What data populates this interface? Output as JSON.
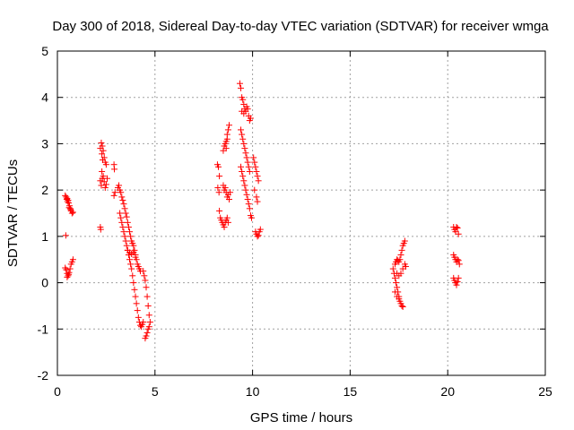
{
  "chart_data": {
    "type": "scatter",
    "title": "Day 300 of 2018, Sidereal Day-to-day VTEC variation (SDTVAR) for receiver wmga",
    "xlabel": "GPS time / hours",
    "ylabel": "SDTVAR / TECUs",
    "xlim": [
      0,
      25
    ],
    "ylim": [
      -2,
      5
    ],
    "x_ticks": [
      "0",
      "5",
      "10",
      "15",
      "20",
      "25"
    ],
    "y_ticks": [
      "-2",
      "-1",
      "0",
      "1",
      "2",
      "3",
      "4",
      "5"
    ],
    "grid": true,
    "marker": "+",
    "color": "#ff0000",
    "series": [
      {
        "name": "SDTVAR",
        "points": [
          [
            0.4,
            1.88
          ],
          [
            0.45,
            1.85
          ],
          [
            0.5,
            1.82
          ],
          [
            0.55,
            1.78
          ],
          [
            0.58,
            1.72
          ],
          [
            0.62,
            1.66
          ],
          [
            0.66,
            1.6
          ],
          [
            0.7,
            1.55
          ],
          [
            0.75,
            1.5
          ],
          [
            0.8,
            1.52
          ],
          [
            0.48,
            1.8
          ],
          [
            0.52,
            1.75
          ],
          [
            0.6,
            1.62
          ],
          [
            0.68,
            1.58
          ],
          [
            0.43,
            1.02
          ],
          [
            0.4,
            0.32
          ],
          [
            0.45,
            0.28
          ],
          [
            0.5,
            0.2
          ],
          [
            0.55,
            0.15
          ],
          [
            0.6,
            0.22
          ],
          [
            0.65,
            0.3
          ],
          [
            0.7,
            0.4
          ],
          [
            0.75,
            0.45
          ],
          [
            0.8,
            0.5
          ],
          [
            0.5,
            0.12
          ],
          [
            0.58,
            0.18
          ],
          [
            2.2,
            2.9
          ],
          [
            2.25,
            3.02
          ],
          [
            2.3,
            2.95
          ],
          [
            2.35,
            2.85
          ],
          [
            2.4,
            2.7
          ],
          [
            2.45,
            2.6
          ],
          [
            2.5,
            2.55
          ],
          [
            2.28,
            2.78
          ],
          [
            2.32,
            2.65
          ],
          [
            2.2,
            2.2
          ],
          [
            2.25,
            2.1
          ],
          [
            2.3,
            2.25
          ],
          [
            2.35,
            2.3
          ],
          [
            2.4,
            2.18
          ],
          [
            2.45,
            2.05
          ],
          [
            2.5,
            2.12
          ],
          [
            2.55,
            2.25
          ],
          [
            2.28,
            2.4
          ],
          [
            2.22,
            1.15
          ],
          [
            2.2,
            1.2
          ],
          [
            2.9,
            2.55
          ],
          [
            2.92,
            2.45
          ],
          [
            2.95,
            1.95
          ],
          [
            2.9,
            1.88
          ],
          [
            3.1,
            2.05
          ],
          [
            3.15,
            2.1
          ],
          [
            3.2,
            2.0
          ],
          [
            3.25,
            1.95
          ],
          [
            3.3,
            1.85
          ],
          [
            3.35,
            1.78
          ],
          [
            3.4,
            1.7
          ],
          [
            3.45,
            1.6
          ],
          [
            3.5,
            1.5
          ],
          [
            3.55,
            1.42
          ],
          [
            3.6,
            1.3
          ],
          [
            3.65,
            1.2
          ],
          [
            3.7,
            1.1
          ],
          [
            3.75,
            1.0
          ],
          [
            3.8,
            0.9
          ],
          [
            3.85,
            0.85
          ],
          [
            3.9,
            0.8
          ],
          [
            3.95,
            0.7
          ],
          [
            4.0,
            0.6
          ],
          [
            4.05,
            0.5
          ],
          [
            4.1,
            0.4
          ],
          [
            4.15,
            0.35
          ],
          [
            4.2,
            0.3
          ],
          [
            4.25,
            0.25
          ],
          [
            3.2,
            1.5
          ],
          [
            3.25,
            1.4
          ],
          [
            3.3,
            1.3
          ],
          [
            3.35,
            1.2
          ],
          [
            3.4,
            1.1
          ],
          [
            3.45,
            1.0
          ],
          [
            3.5,
            0.9
          ],
          [
            3.55,
            0.8
          ],
          [
            3.6,
            0.7
          ],
          [
            3.65,
            0.6
          ],
          [
            3.7,
            0.5
          ],
          [
            3.75,
            0.4
          ],
          [
            3.8,
            0.3
          ],
          [
            3.85,
            0.15
          ],
          [
            3.9,
            0.0
          ],
          [
            3.95,
            -0.15
          ],
          [
            4.0,
            -0.3
          ],
          [
            4.05,
            -0.45
          ],
          [
            4.1,
            -0.6
          ],
          [
            4.15,
            -0.75
          ],
          [
            4.2,
            -0.85
          ],
          [
            4.25,
            -0.92
          ],
          [
            4.3,
            -0.95
          ],
          [
            4.35,
            -0.9
          ],
          [
            4.4,
            -0.85
          ],
          [
            3.6,
            0.7
          ],
          [
            3.7,
            0.65
          ],
          [
            3.8,
            0.62
          ],
          [
            3.9,
            0.66
          ],
          [
            4.0,
            0.55
          ],
          [
            4.4,
            0.25
          ],
          [
            4.45,
            0.15
          ],
          [
            4.5,
            0.05
          ],
          [
            4.55,
            -0.1
          ],
          [
            4.6,
            -0.3
          ],
          [
            4.65,
            -0.5
          ],
          [
            4.7,
            -0.7
          ],
          [
            4.75,
            -0.85
          ],
          [
            4.5,
            -1.2
          ],
          [
            4.55,
            -1.15
          ],
          [
            4.6,
            -1.08
          ],
          [
            4.65,
            -1.0
          ],
          [
            4.7,
            -0.95
          ],
          [
            8.2,
            2.55
          ],
          [
            8.25,
            2.5
          ],
          [
            8.3,
            2.3
          ],
          [
            8.22,
            2.05
          ],
          [
            8.28,
            1.95
          ],
          [
            8.3,
            1.55
          ],
          [
            8.35,
            1.4
          ],
          [
            8.4,
            1.35
          ],
          [
            8.45,
            1.3
          ],
          [
            8.5,
            1.25
          ],
          [
            8.55,
            1.2
          ],
          [
            8.6,
            1.3
          ],
          [
            8.65,
            1.35
          ],
          [
            8.7,
            1.4
          ],
          [
            8.75,
            1.3
          ],
          [
            8.5,
            2.1
          ],
          [
            8.55,
            2.0
          ],
          [
            8.6,
            2.05
          ],
          [
            8.65,
            1.95
          ],
          [
            8.7,
            1.85
          ],
          [
            8.75,
            1.9
          ],
          [
            8.8,
            1.8
          ],
          [
            8.85,
            1.95
          ],
          [
            8.5,
            2.85
          ],
          [
            8.55,
            2.95
          ],
          [
            8.6,
            3.0
          ],
          [
            8.65,
            3.05
          ],
          [
            8.7,
            3.2
          ],
          [
            8.75,
            3.3
          ],
          [
            8.8,
            3.4
          ],
          [
            8.7,
            3.1
          ],
          [
            8.65,
            2.9
          ],
          [
            9.35,
            4.3
          ],
          [
            9.4,
            4.2
          ],
          [
            9.45,
            4.0
          ],
          [
            9.5,
            3.95
          ],
          [
            9.55,
            3.85
          ],
          [
            9.6,
            3.75
          ],
          [
            9.65,
            3.7
          ],
          [
            9.7,
            3.8
          ],
          [
            9.75,
            3.75
          ],
          [
            9.8,
            3.6
          ],
          [
            9.85,
            3.5
          ],
          [
            9.9,
            3.55
          ],
          [
            9.45,
            3.7
          ],
          [
            9.55,
            3.65
          ],
          [
            9.4,
            3.3
          ],
          [
            9.45,
            3.2
          ],
          [
            9.5,
            3.1
          ],
          [
            9.55,
            3.0
          ],
          [
            9.6,
            2.9
          ],
          [
            9.65,
            2.8
          ],
          [
            9.7,
            2.7
          ],
          [
            9.75,
            2.6
          ],
          [
            9.8,
            2.5
          ],
          [
            9.85,
            2.4
          ],
          [
            9.4,
            2.5
          ],
          [
            9.45,
            2.4
          ],
          [
            9.5,
            2.3
          ],
          [
            9.55,
            2.2
          ],
          [
            9.6,
            2.1
          ],
          [
            9.65,
            2.0
          ],
          [
            9.7,
            1.9
          ],
          [
            9.75,
            1.8
          ],
          [
            9.8,
            1.7
          ],
          [
            9.85,
            1.6
          ],
          [
            9.9,
            1.45
          ],
          [
            9.95,
            1.4
          ],
          [
            10.05,
            2.7
          ],
          [
            10.1,
            2.6
          ],
          [
            10.15,
            2.5
          ],
          [
            10.2,
            2.4
          ],
          [
            10.25,
            2.3
          ],
          [
            10.3,
            2.2
          ],
          [
            10.1,
            2.0
          ],
          [
            10.2,
            1.85
          ],
          [
            10.25,
            1.75
          ],
          [
            10.15,
            1.1
          ],
          [
            10.2,
            1.05
          ],
          [
            10.25,
            1.0
          ],
          [
            10.3,
            1.02
          ],
          [
            10.35,
            1.1
          ],
          [
            10.4,
            1.15
          ],
          [
            17.2,
            0.3
          ],
          [
            17.25,
            0.2
          ],
          [
            17.3,
            0.1
          ],
          [
            17.35,
            0.0
          ],
          [
            17.4,
            -0.1
          ],
          [
            17.45,
            -0.2
          ],
          [
            17.5,
            -0.3
          ],
          [
            17.55,
            -0.4
          ],
          [
            17.6,
            -0.45
          ],
          [
            17.65,
            -0.5
          ],
          [
            17.7,
            -0.52
          ],
          [
            17.3,
            0.4
          ],
          [
            17.35,
            0.45
          ],
          [
            17.4,
            0.5
          ],
          [
            17.45,
            0.48
          ],
          [
            17.5,
            0.45
          ],
          [
            17.55,
            0.5
          ],
          [
            17.6,
            0.6
          ],
          [
            17.65,
            0.7
          ],
          [
            17.7,
            0.8
          ],
          [
            17.75,
            0.85
          ],
          [
            17.8,
            0.9
          ],
          [
            17.4,
            0.2
          ],
          [
            17.5,
            0.15
          ],
          [
            17.6,
            0.2
          ],
          [
            17.7,
            0.3
          ],
          [
            17.8,
            0.4
          ],
          [
            17.85,
            0.35
          ],
          [
            17.3,
            -0.2
          ],
          [
            17.4,
            -0.3
          ],
          [
            17.5,
            -0.35
          ],
          [
            20.3,
            1.2
          ],
          [
            20.35,
            1.15
          ],
          [
            20.4,
            1.1
          ],
          [
            20.45,
            1.2
          ],
          [
            20.5,
            1.18
          ],
          [
            20.55,
            1.05
          ],
          [
            20.3,
            0.6
          ],
          [
            20.35,
            0.55
          ],
          [
            20.4,
            0.5
          ],
          [
            20.45,
            0.45
          ],
          [
            20.5,
            0.5
          ],
          [
            20.55,
            0.48
          ],
          [
            20.6,
            0.4
          ],
          [
            20.3,
            0.1
          ],
          [
            20.35,
            0.05
          ],
          [
            20.4,
            0.0
          ],
          [
            20.45,
            -0.05
          ],
          [
            20.5,
            0.02
          ],
          [
            20.55,
            0.1
          ]
        ]
      }
    ]
  }
}
